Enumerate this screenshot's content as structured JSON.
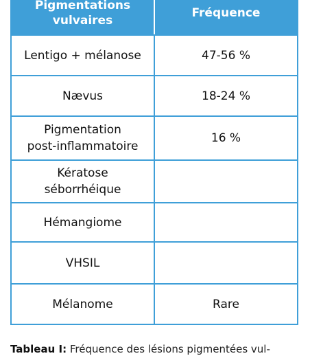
{
  "table": {
    "headers": [
      "Pigmentations\nvulvaires",
      "Fréquence"
    ],
    "rows": [
      {
        "lesion": "Lentigo + mélanose",
        "frequency": "47-56 %"
      },
      {
        "lesion": "Nævus",
        "frequency": "18-24 %"
      },
      {
        "lesion": "Pigmentation\npost-inflammatoire",
        "frequency": "16 %"
      },
      {
        "lesion": "Kératose\nséborrhéique",
        "frequency": ""
      },
      {
        "lesion": "Hémangiome",
        "frequency": ""
      },
      {
        "lesion": "VHSIL",
        "frequency": ""
      },
      {
        "lesion": "Mélanome",
        "frequency": "Rare"
      }
    ]
  },
  "caption": {
    "label": "Tableau I:",
    "text": " Fréquence des lésions pigmentées vul-"
  },
  "colors": {
    "header_bg": "#3f9fd8",
    "border": "#3f9fd8"
  }
}
